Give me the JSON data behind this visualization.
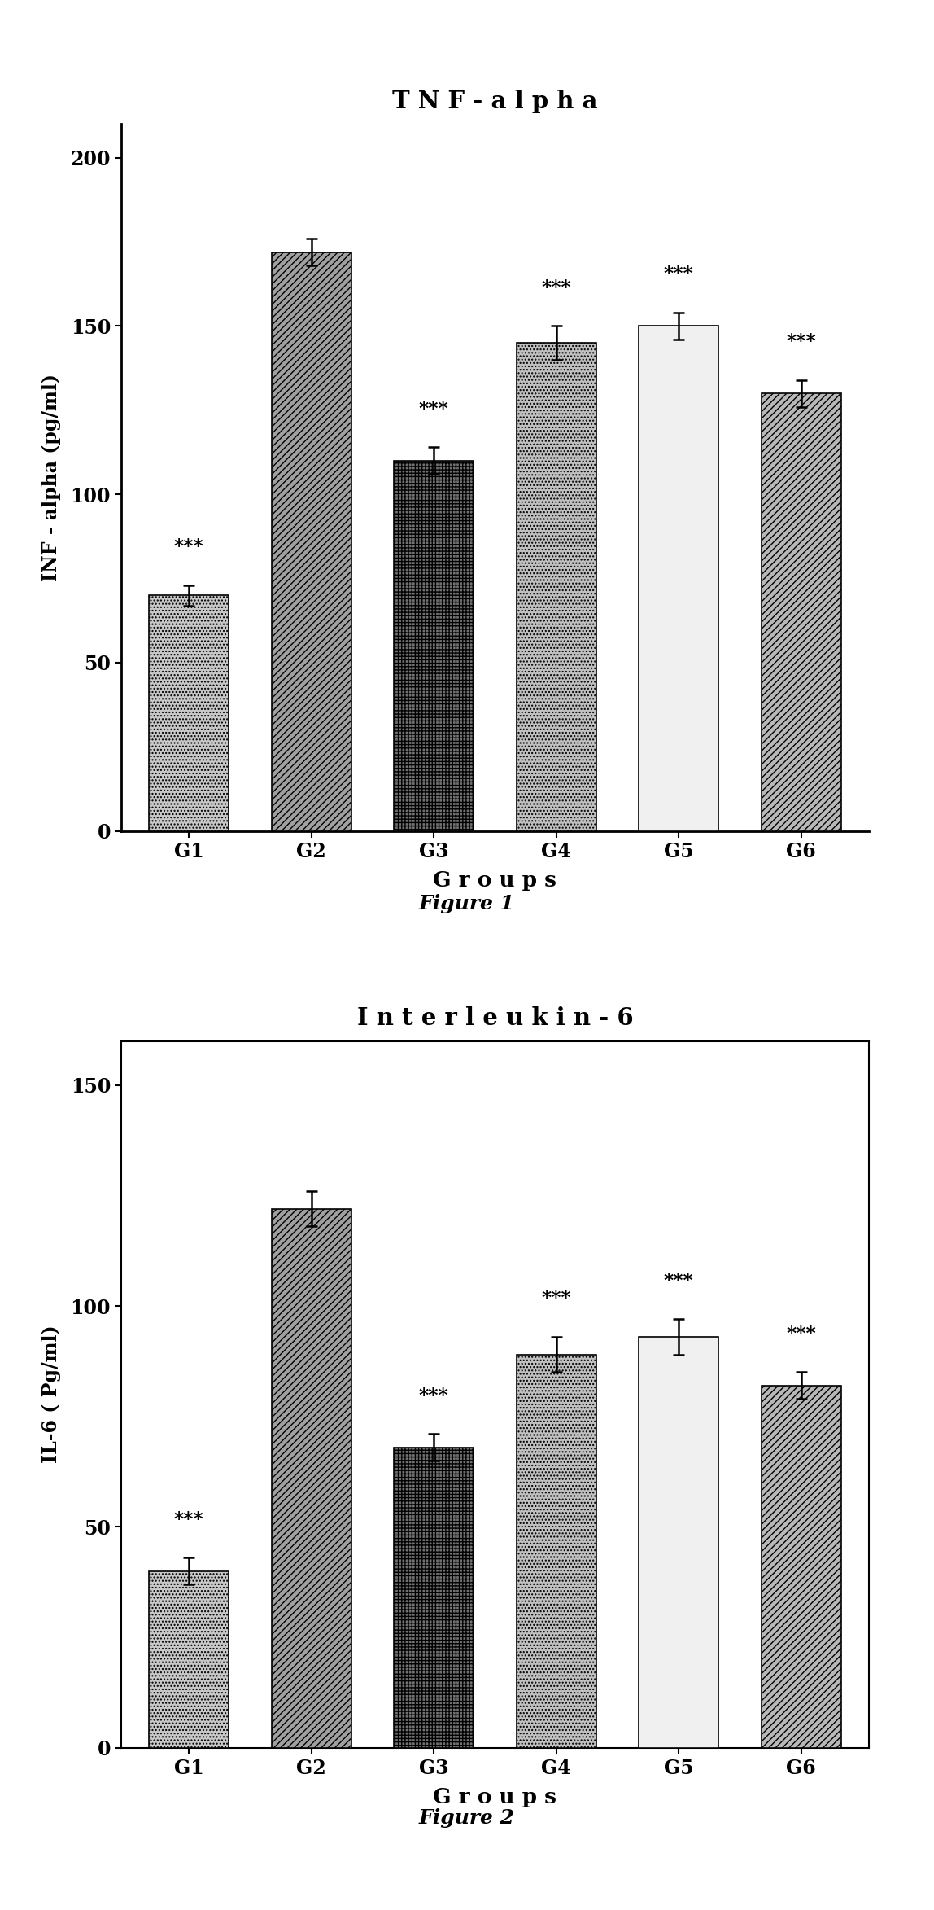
{
  "fig1": {
    "title": "T N F - a l p h a",
    "ylabel": "INF - alpha (pg/ml)",
    "xlabel": "G r o u p s",
    "categories": [
      "G1",
      "G2",
      "G3",
      "G4",
      "G5",
      "G6"
    ],
    "values": [
      70,
      172,
      110,
      145,
      150,
      130
    ],
    "errors": [
      3,
      4,
      4,
      5,
      4,
      4
    ],
    "ylim": [
      0,
      210
    ],
    "yticks": [
      0,
      50,
      100,
      150,
      200
    ],
    "significance": [
      "***",
      "",
      "***",
      "***",
      "***",
      "***"
    ],
    "figure_label": "Figure 1",
    "hatches": [
      "....",
      "////",
      "++++",
      "....",
      "    ",
      "////"
    ],
    "facecolors": [
      "#c8c8c8",
      "#a0a0a0",
      "#707070",
      "#c0c0c0",
      "#f0f0f0",
      "#b8b8b8"
    ]
  },
  "fig2": {
    "title": "I n t e r l e u k i n - 6",
    "ylabel": "IL-6 ( Pg/ml)",
    "xlabel": "G r o u p s",
    "categories": [
      "G1",
      "G2",
      "G3",
      "G4",
      "G5",
      "G6"
    ],
    "values": [
      40,
      122,
      68,
      89,
      93,
      82
    ],
    "errors": [
      3,
      4,
      3,
      4,
      4,
      3
    ],
    "ylim": [
      0,
      160
    ],
    "yticks": [
      0,
      50,
      100,
      150
    ],
    "significance": [
      "***",
      "",
      "***",
      "***",
      "***",
      "***"
    ],
    "figure_label": "Figure 2",
    "hatches": [
      "....",
      "////",
      "++++",
      "....",
      "    ",
      "////"
    ],
    "facecolors": [
      "#c8c8c8",
      "#a0a0a0",
      "#707070",
      "#c0c0c0",
      "#f0f0f0",
      "#b8b8b8"
    ]
  },
  "background_color": "#ffffff",
  "bar_width": 0.65
}
